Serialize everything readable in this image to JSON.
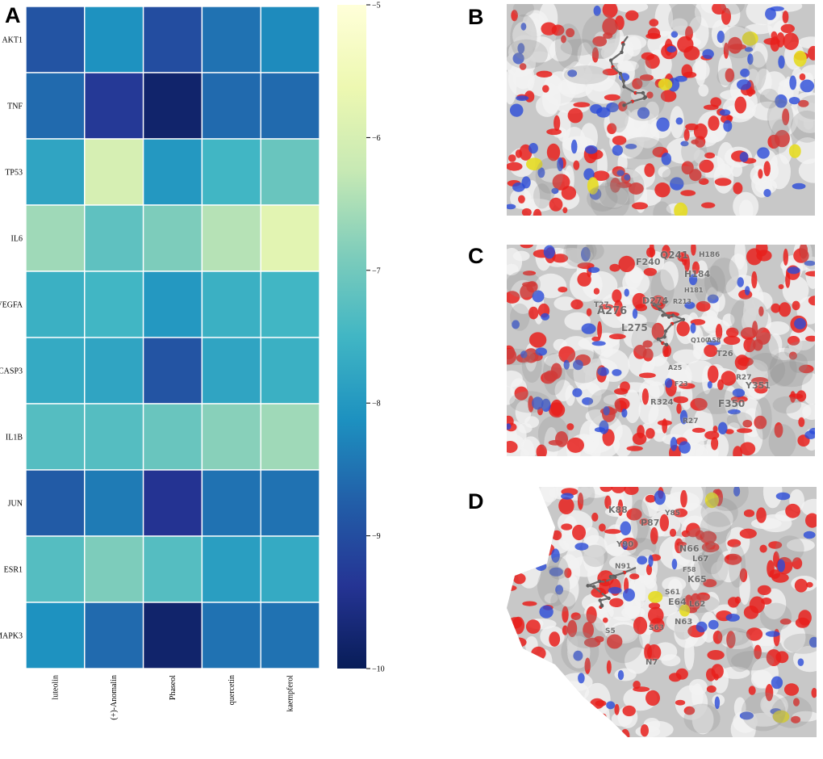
{
  "panel_labels": {
    "a": "A",
    "b": "B",
    "c": "C",
    "d": "D"
  },
  "chart_data": {
    "type": "heatmap",
    "title": "",
    "xlabel": "",
    "ylabel": "",
    "columns": [
      "luteolin",
      "(+)-Anomalin",
      "Phaseol",
      "quercetin",
      "kaempferol"
    ],
    "rows": [
      "AKT1",
      "TNF",
      "TP53",
      "IL6",
      "VEGFA",
      "CASP3",
      "IL1B",
      "JUN",
      "ESR1",
      "MAPK3"
    ],
    "values": [
      [
        -8.9,
        -8.1,
        -9.0,
        -8.5,
        -8.2
      ],
      [
        -8.6,
        -9.3,
        -9.8,
        -8.6,
        -8.6
      ],
      [
        -7.8,
        -6.0,
        -8.0,
        -7.5,
        -7.1
      ],
      [
        -6.6,
        -7.2,
        -6.9,
        -6.4,
        -5.8
      ],
      [
        -7.6,
        -7.5,
        -8.0,
        -7.6,
        -7.5
      ],
      [
        -7.7,
        -7.8,
        -8.9,
        -7.8,
        -7.6
      ],
      [
        -7.3,
        -7.3,
        -7.1,
        -6.8,
        -6.6
      ],
      [
        -8.8,
        -8.4,
        -9.4,
        -8.5,
        -8.5
      ],
      [
        -7.3,
        -6.9,
        -7.3,
        -7.9,
        -7.7
      ],
      [
        -8.1,
        -8.6,
        -9.8,
        -8.5,
        -8.5
      ]
    ],
    "colorbar": {
      "min": -10,
      "max": -5,
      "ticks": [
        "-5",
        "-6",
        "-7",
        "-8",
        "-9",
        "-10"
      ]
    },
    "colormap": [
      "#ffffd9",
      "#edf8b1",
      "#c7e9b4",
      "#7fcdbb",
      "#41b6c4",
      "#1d91c0",
      "#225ea8",
      "#253494",
      "#081d58"
    ]
  },
  "docking_labels": {
    "c": [
      "Q241",
      "F240",
      "H186",
      "H184",
      "H181",
      "D274",
      "R213",
      "T27",
      "A276",
      "L275",
      "Q100",
      "A58",
      "T26",
      "R27",
      "Y351",
      "A25",
      "F23",
      "R324",
      "F350",
      "R27"
    ],
    "d": [
      "K88",
      "Y85",
      "P87",
      "N66",
      "L67",
      "Y90",
      "N91",
      "F58",
      "K65",
      "S61",
      "E64",
      "L62",
      "N63",
      "S63",
      "S5",
      "N7"
    ]
  },
  "colors": {
    "surface_gray": "#c8c8c8",
    "surface_light": "#f2f2f2",
    "oxygen_red": "#e8201c",
    "nitrogen_blue": "#2a4bd8",
    "sulfur_yellow": "#e5dc22"
  }
}
